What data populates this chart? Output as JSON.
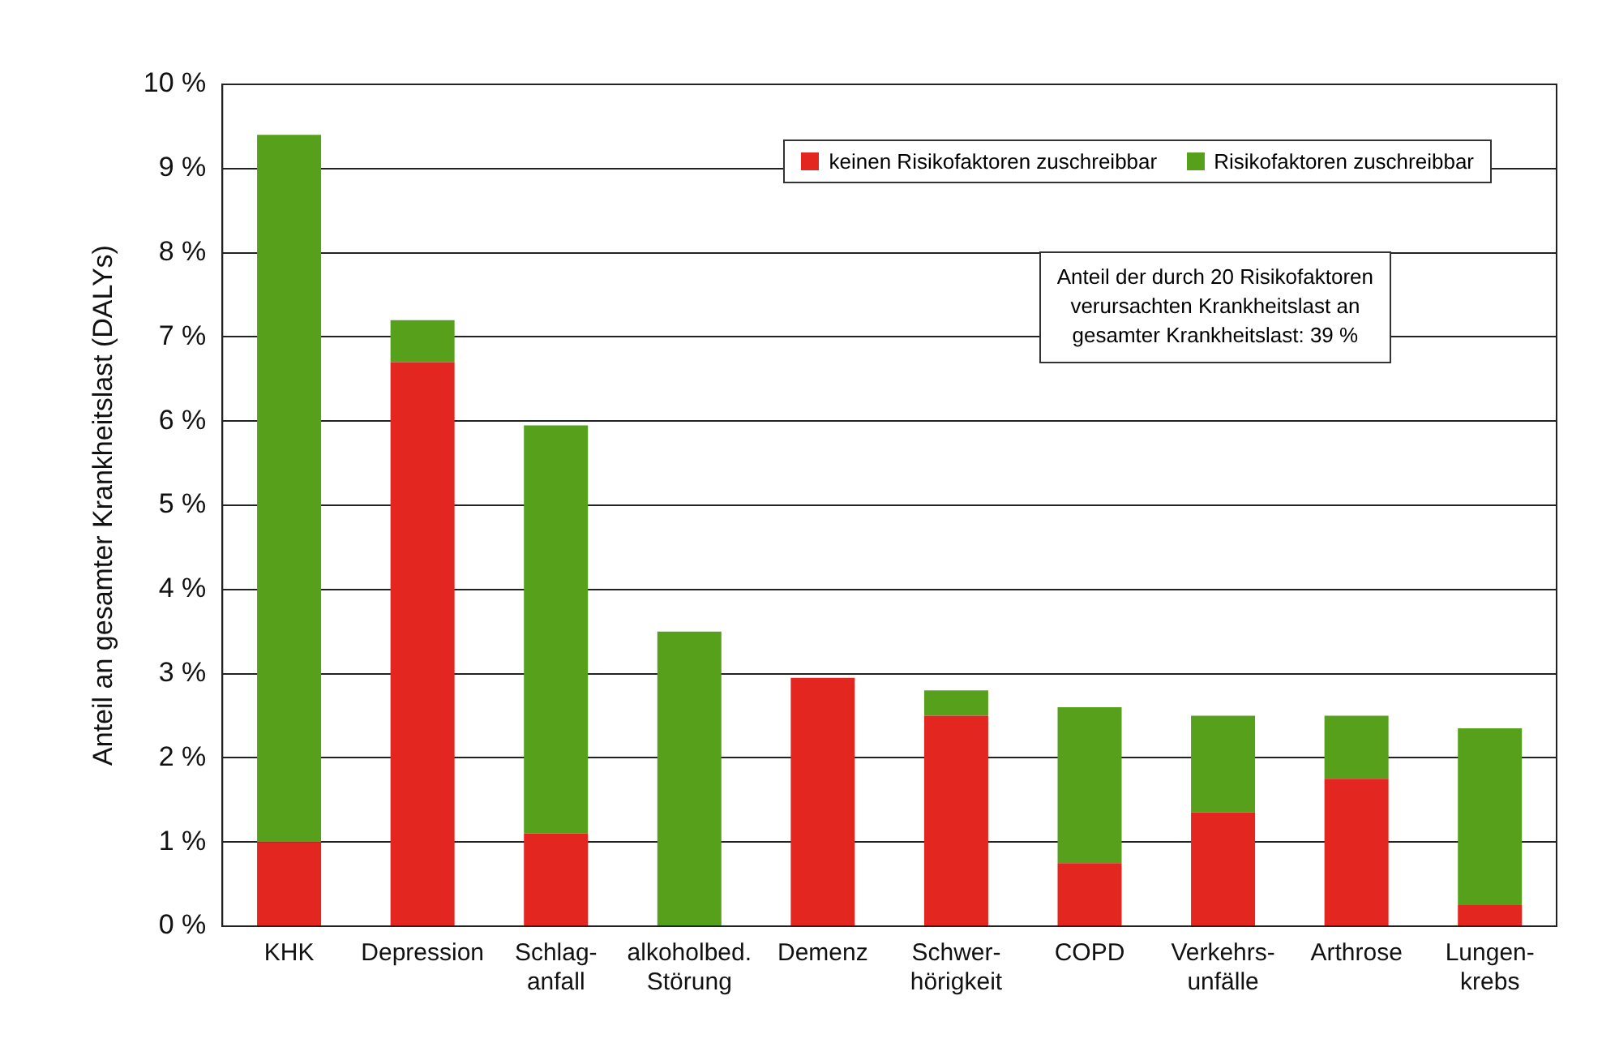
{
  "chart_data": {
    "type": "bar",
    "stacked": true,
    "ylabel": "Anteil an gesamter Krankheitslast (DALYs)",
    "categories": [
      "KHK",
      "Depression",
      "Schlag-\nanfall",
      "alkoholbed.\nStörung",
      "Demenz",
      "Schwer-\nhörigkeit",
      "COPD",
      "Verkehrs-\nunfälle",
      "Arthrose",
      "Lungen-\nkrebs"
    ],
    "series": [
      {
        "name": "keinen Risikofaktoren zuschreibbar",
        "color": "#e3261f",
        "values": [
          1.0,
          6.7,
          1.1,
          0,
          2.95,
          2.5,
          0.75,
          1.35,
          1.75,
          0.25
        ]
      },
      {
        "name": "Risikofaktoren zuschreibbar",
        "color": "#56a01c",
        "values": [
          8.4,
          0.5,
          4.85,
          3.5,
          0,
          0.3,
          1.85,
          1.15,
          0.75,
          2.1
        ]
      }
    ],
    "ylim": [
      0,
      10
    ],
    "yticks": [
      {
        "value": 0,
        "label": "0 %"
      },
      {
        "value": 1,
        "label": "1 %"
      },
      {
        "value": 2,
        "label": "2 %"
      },
      {
        "value": 3,
        "label": "3 %"
      },
      {
        "value": 4,
        "label": "4 %"
      },
      {
        "value": 5,
        "label": "5 %"
      },
      {
        "value": 6,
        "label": "6 %"
      },
      {
        "value": 7,
        "label": "7 %"
      },
      {
        "value": 8,
        "label": "8 %"
      },
      {
        "value": 9,
        "label": "9 %"
      },
      {
        "value": 10,
        "label": "10 %"
      }
    ],
    "grid": "y",
    "legend": "top right",
    "annotations": [
      "Anteil der durch 20 Risikofaktoren\nverursachten Krankheitslast an\ngesamter Krankheitslast: 39 %"
    ]
  }
}
